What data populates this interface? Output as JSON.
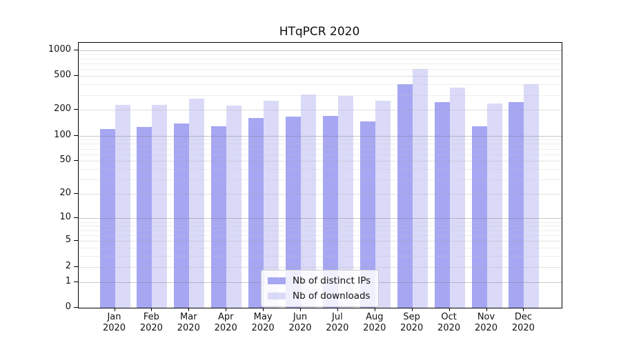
{
  "title": "HTqPCR 2020",
  "chart_data": {
    "type": "bar",
    "title": "HTqPCR 2020",
    "categories": [
      "Jan 2020",
      "Feb 2020",
      "Mar 2020",
      "Apr 2020",
      "May 2020",
      "Jun 2020",
      "Jul 2020",
      "Aug 2020",
      "Sep 2020",
      "Oct 2020",
      "Nov 2020",
      "Dec 2020"
    ],
    "series": [
      {
        "name": "Nb of distinct IPs",
        "color": "#a6a6f3",
        "values": [
          120,
          126,
          139,
          129,
          160,
          167,
          170,
          147,
          400,
          246,
          129,
          246
        ]
      },
      {
        "name": "Nb of downloads",
        "color": "#dadaf8",
        "values": [
          230,
          230,
          270,
          225,
          255,
          300,
          290,
          255,
          600,
          365,
          237,
          400
        ]
      }
    ],
    "xlabel": "",
    "ylabel": "",
    "yscale": "log1p",
    "ylim": [
      0,
      1215
    ],
    "y_ticks": [
      0,
      1,
      2,
      5,
      10,
      20,
      50,
      100,
      200,
      500,
      1000
    ],
    "y_minor_gridlines": [
      3,
      4,
      6,
      7,
      8,
      9,
      30,
      40,
      60,
      70,
      80,
      90,
      300,
      400,
      600,
      700,
      800,
      900
    ],
    "grid": true,
    "legend_position": "inside-bottom-center"
  }
}
